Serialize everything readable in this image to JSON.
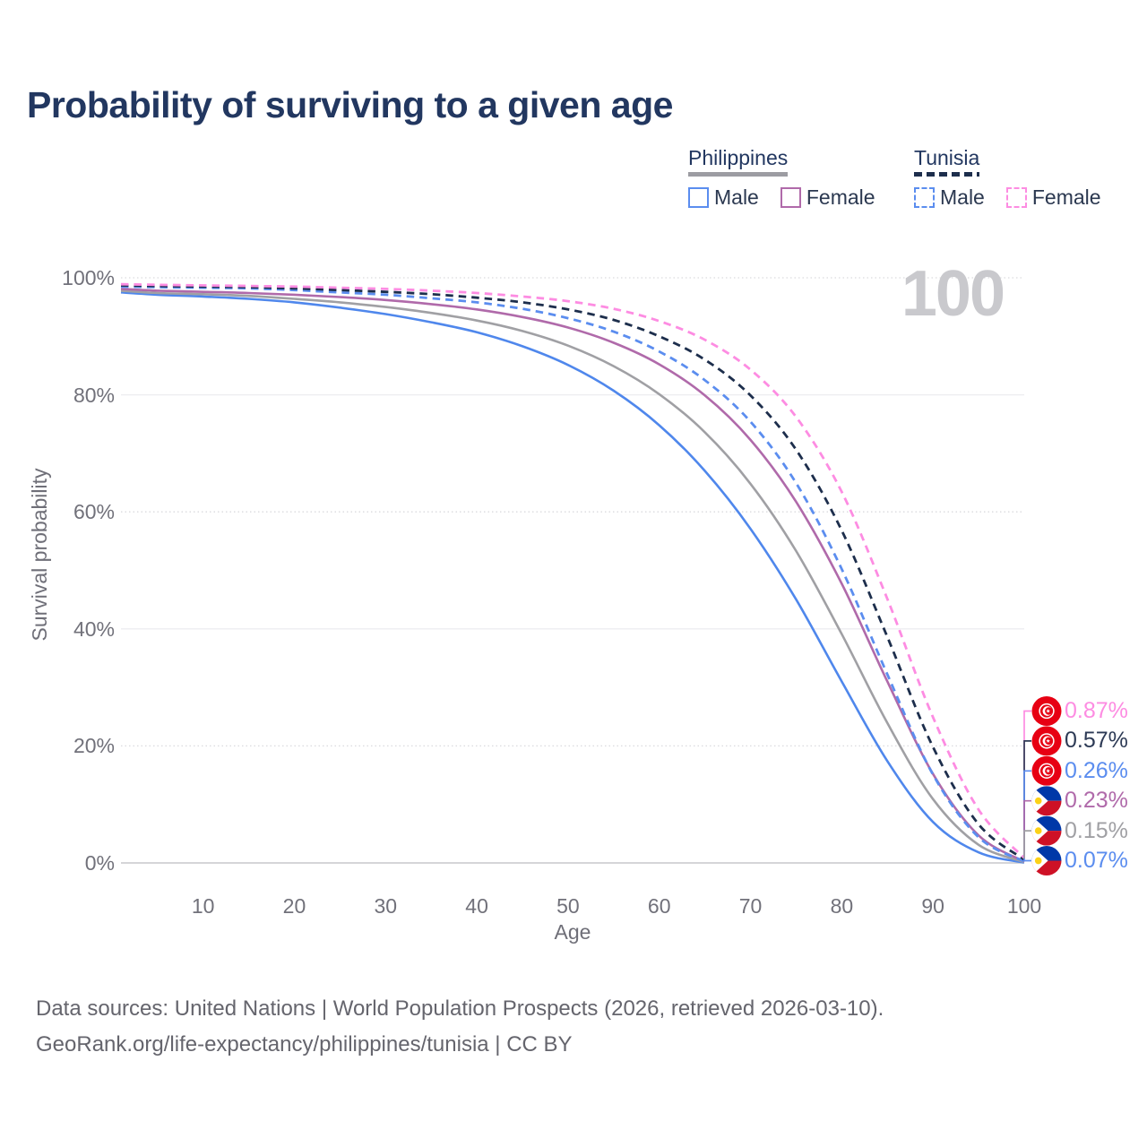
{
  "header": {
    "title": "Probability of surviving to a given age"
  },
  "watermark": {
    "age_counter": "100"
  },
  "legend": {
    "groups": [
      {
        "label": "Philippines",
        "line_style": "solid",
        "underline_color": "#9c9ca2",
        "items": [
          {
            "label": "Male",
            "color": "#5b8def",
            "line_style": "solid"
          },
          {
            "label": "Female",
            "color": "#b06aaa",
            "line_style": "solid"
          }
        ]
      },
      {
        "label": "Tunisia",
        "line_style": "dashed",
        "underline_color": "#1d2e4c",
        "items": [
          {
            "label": "Male",
            "color": "#5b8def",
            "line_style": "dashed"
          },
          {
            "label": "Female",
            "color": "#fd8ce2",
            "line_style": "dashed"
          }
        ]
      }
    ]
  },
  "axes": {
    "y_label": "Survival probability",
    "x_label": "Age",
    "y_ticks": [
      {
        "label": "100%",
        "value": 100
      },
      {
        "label": "80%",
        "value": 80
      },
      {
        "label": "60%",
        "value": 60
      },
      {
        "label": "40%",
        "value": 40
      },
      {
        "label": "20%",
        "value": 20
      },
      {
        "label": "0%",
        "value": 0
      }
    ],
    "x_ticks": [
      {
        "label": "10",
        "value": 10
      },
      {
        "label": "20",
        "value": 20
      },
      {
        "label": "30",
        "value": 30
      },
      {
        "label": "40",
        "value": 40
      },
      {
        "label": "50",
        "value": 50
      },
      {
        "label": "60",
        "value": 60
      },
      {
        "label": "70",
        "value": 70
      },
      {
        "label": "80",
        "value": 80
      },
      {
        "label": "90",
        "value": 90
      },
      {
        "label": "100",
        "value": 100
      }
    ]
  },
  "chart_data": {
    "type": "line",
    "title": "Probability of surviving to a given age",
    "xlabel": "Age",
    "ylabel": "Survival probability",
    "xlim": [
      1,
      100
    ],
    "ylim": [
      0,
      100
    ],
    "grid": true,
    "legend_position": "top-right",
    "ages": [
      1,
      5,
      10,
      15,
      20,
      25,
      30,
      35,
      40,
      45,
      50,
      55,
      60,
      65,
      70,
      75,
      80,
      85,
      90,
      95,
      100
    ],
    "series": [
      {
        "name": "Philippines Male",
        "country": "Philippines",
        "sex": "Male",
        "style": "solid",
        "color": "#4f87ec",
        "end_label": "0.07%",
        "values": [
          97.5,
          97.1,
          96.8,
          96.4,
          95.8,
          94.9,
          93.8,
          92.4,
          90.7,
          88.3,
          85.1,
          80.7,
          74.8,
          67.0,
          57.1,
          45.0,
          31.0,
          17.4,
          7.0,
          1.8,
          0.07
        ]
      },
      {
        "name": "Philippines Both sexes",
        "country": "Philippines",
        "sex": "Both",
        "style": "solid",
        "color": "#a0a0a4",
        "end_label": "0.15%",
        "values": [
          97.8,
          97.4,
          97.2,
          96.9,
          96.4,
          95.8,
          95.0,
          94.0,
          92.7,
          90.9,
          88.4,
          84.9,
          80.1,
          73.6,
          64.8,
          53.3,
          39.1,
          23.9,
          10.9,
          3.1,
          0.15
        ]
      },
      {
        "name": "Philippines Female",
        "country": "Philippines",
        "sex": "Female",
        "style": "solid",
        "color": "#b06aaa",
        "end_label": "0.23%",
        "values": [
          98.1,
          97.8,
          97.6,
          97.4,
          97.1,
          96.7,
          96.2,
          95.5,
          94.6,
          93.3,
          91.5,
          88.9,
          85.2,
          79.9,
          72.3,
          61.7,
          47.7,
          31.0,
          15.2,
          4.7,
          0.23
        ]
      },
      {
        "name": "Tunisia Male",
        "country": "Tunisia",
        "sex": "Male",
        "style": "dashed",
        "color": "#5b8def",
        "end_label": "0.26%",
        "values": [
          98.5,
          98.4,
          98.3,
          98.2,
          97.9,
          97.5,
          97.1,
          96.5,
          95.8,
          94.7,
          93.1,
          90.8,
          87.4,
          82.5,
          75.4,
          64.9,
          50.2,
          32.2,
          15.1,
          4.4,
          0.26
        ]
      },
      {
        "name": "Tunisia Both sexes",
        "country": "Tunisia",
        "sex": "Both",
        "style": "dashed",
        "color": "#1d2e4c",
        "end_label": "0.57%",
        "values": [
          98.7,
          98.6,
          98.5,
          98.4,
          98.2,
          97.9,
          97.6,
          97.2,
          96.6,
          95.8,
          94.6,
          92.8,
          90.0,
          86.0,
          79.9,
          70.6,
          56.8,
          38.6,
          19.8,
          6.6,
          0.57
        ]
      },
      {
        "name": "Tunisia Female",
        "country": "Tunisia",
        "sex": "Female",
        "style": "dashed",
        "color": "#fd8ce2",
        "end_label": "0.87%",
        "values": [
          98.9,
          98.8,
          98.7,
          98.6,
          98.5,
          98.3,
          98.1,
          97.8,
          97.4,
          96.8,
          96.0,
          94.7,
          92.6,
          89.4,
          84.3,
          76.2,
          63.4,
          45.1,
          24.9,
          9.1,
          0.87
        ]
      }
    ],
    "end_labels": [
      {
        "value": "0.87%",
        "color": "#fd8ce2",
        "flag": "tunisia",
        "series": "Tunisia Female"
      },
      {
        "value": "0.57%",
        "color": "#2d3a55",
        "flag": "tunisia",
        "series": "Tunisia Both sexes"
      },
      {
        "value": "0.26%",
        "color": "#5b8def",
        "flag": "tunisia",
        "series": "Tunisia Male"
      },
      {
        "value": "0.23%",
        "color": "#b06aaa",
        "flag": "philippines",
        "series": "Philippines Female"
      },
      {
        "value": "0.15%",
        "color": "#a0a0a4",
        "flag": "philippines",
        "series": "Philippines Both sexes"
      },
      {
        "value": "0.07%",
        "color": "#5b8def",
        "flag": "philippines",
        "series": "Philippines Male"
      }
    ]
  },
  "footer": {
    "line1": "Data sources: United Nations | World Population Prospects (2026, retrieved 2026-03-10).",
    "line2": "GeoRank.org/life-expectancy/philippines/tunisia | CC BY"
  }
}
